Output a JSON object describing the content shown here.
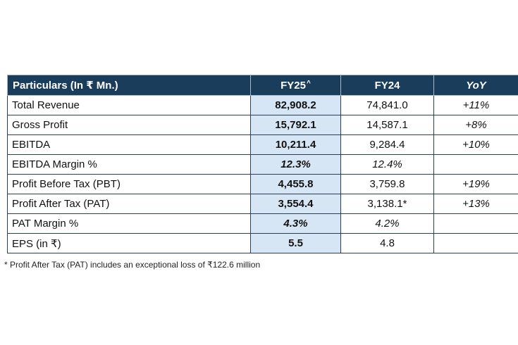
{
  "table": {
    "headers": {
      "particulars": "Particulars (In ₹ Mn.)",
      "fy25": "FY25",
      "fy25_mark": "^",
      "fy24": "FY24",
      "yoy": "YoY"
    },
    "rows": [
      {
        "particular": "Total Revenue",
        "fy25": "82,908.2",
        "fy24": "74,841.0",
        "yoy": "+11%"
      },
      {
        "particular": "Gross Profit",
        "fy25": "15,792.1",
        "fy24": "14,587.1",
        "yoy": "+8%"
      },
      {
        "particular": "EBITDA",
        "fy25": "10,211.4",
        "fy24": "9,284.4",
        "yoy": "+10%"
      },
      {
        "particular": "EBITDA Margin %",
        "fy25": "12.3%",
        "fy24": "12.4%",
        "yoy": ""
      },
      {
        "particular": "Profit Before Tax (PBT)",
        "fy25": "4,455.8",
        "fy24": "3,759.8",
        "yoy": "+19%"
      },
      {
        "particular": "Profit After Tax (PAT)",
        "fy25": "3,554.4",
        "fy24": "3,138.1*",
        "yoy": "+13%"
      },
      {
        "particular": "PAT Margin %",
        "fy25": "4.3%",
        "fy24": "4.2%",
        "yoy": ""
      },
      {
        "particular": "EPS (in ₹)",
        "fy25": "5.5",
        "fy24": "4.8",
        "yoy": ""
      }
    ]
  },
  "footnote": "* Profit After Tax (PAT) includes an exceptional loss of ₹122.6 million",
  "colors": {
    "header_background": "#1b3d5c",
    "fy25_highlight": "#d6e6f5"
  }
}
